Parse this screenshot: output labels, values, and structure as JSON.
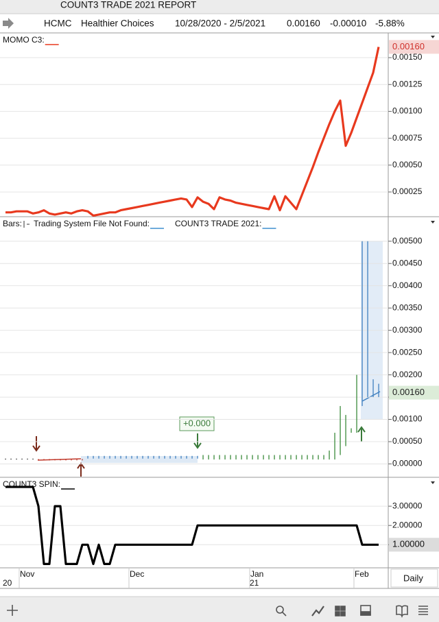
{
  "window_title": "COUNT3 TRADE 2021 REPORT",
  "header": {
    "symbol": "HCMC",
    "name": "Healthier Choices",
    "range": "10/28/2020 - 2/5/2021",
    "last": "0.00160",
    "change": "-0.00010",
    "change_pct": "-5.88%"
  },
  "period": "Daily",
  "chart_data": [
    {
      "type": "line",
      "series": [
        {
          "name": "MOMO C3:",
          "color": "#e8391e",
          "values": [
            6e-05,
            6e-05,
            7e-05,
            7e-05,
            7e-05,
            5e-05,
            6e-05,
            8e-05,
            5e-05,
            4e-05,
            5e-05,
            6e-05,
            5e-05,
            7e-05,
            8e-05,
            7e-05,
            3e-05,
            4e-05,
            5e-05,
            6e-05,
            6e-05,
            8e-05,
            9e-05,
            0.0001,
            0.00011,
            0.00012,
            0.00013,
            0.00014,
            0.00015,
            0.00016,
            0.00017,
            0.00018,
            0.00019,
            0.00018,
            0.00011,
            0.0002,
            0.00016,
            0.00014,
            9e-05,
            0.0002,
            0.00018,
            0.00017,
            0.00015,
            0.00014,
            0.00013,
            0.00012,
            0.00011,
            0.0001,
            9e-05,
            0.00021,
            8e-05,
            0.00021,
            0.00015,
            9e-05,
            0.00022,
            0.00035,
            0.00048,
            0.00062,
            0.00075,
            0.00088,
            0.001,
            0.0011,
            0.00068,
            0.0008,
            0.00094,
            0.00108,
            0.00122,
            0.00136,
            0.0016
          ]
        }
      ],
      "ylim": [
        2e-05,
        0.00173
      ],
      "yticks": [
        0.00025,
        {
          "value": 0.0005,
          "label": "0.00050"
        },
        0.00075,
        {
          "value": 0.001,
          "label": "0.00100"
        },
        0.00125,
        {
          "value": 0.0015,
          "label": "0.00150"
        }
      ],
      "last_value": {
        "value": 0.0016,
        "label": "0.00160"
      },
      "last_value_color": "#d0302a",
      "last_value_bg": "#f6d6d4"
    },
    {
      "type": "hilo",
      "series": [
        {
          "name": "Bars:",
          "high": [
            0.00012,
            0.00012,
            0.00012,
            0.00012,
            0.00012,
            0.00012,
            0.00011,
            0.00011,
            0.00011,
            0.00011,
            0.00011,
            0.00011,
            0.00011,
            0.00011,
            0.00011,
            0.00018,
            0.00018,
            0.00018,
            0.00018,
            0.00018,
            0.00018,
            0.00018,
            0.00018,
            0.00018,
            0.00018,
            0.00018,
            0.00018,
            0.00018,
            0.00018,
            0.00018,
            0.00018,
            0.00018,
            0.00018,
            0.00018,
            0.00018,
            0.00018,
            0.0002,
            0.0002,
            0.0002,
            0.0002,
            0.0002,
            0.0002,
            0.0002,
            0.0002,
            0.0002,
            0.0002,
            0.0002,
            0.0002,
            0.0002,
            0.0002,
            0.0002,
            0.0002,
            0.0002,
            0.0002,
            0.0002,
            0.0002,
            0.0002,
            0.0002,
            0.0002,
            0.0003,
            0.0007,
            0.0013,
            0.0011,
            0.0008,
            0.002,
            0.005,
            0.005,
            0.0019,
            0.0018
          ],
          "low": [
            0.00012,
            0.00012,
            0.00012,
            0.00012,
            0.00012,
            0.00012,
            8e-05,
            8e-05,
            8e-05,
            8e-05,
            8e-05,
            8e-05,
            8e-05,
            8e-05,
            8e-05,
            0.00012,
            0.00012,
            0.00012,
            0.00012,
            0.00012,
            0.00012,
            0.00012,
            0.00012,
            0.00012,
            0.00012,
            0.00012,
            0.00012,
            0.00012,
            0.00012,
            0.00012,
            0.00012,
            0.00012,
            0.00012,
            0.00012,
            0.00012,
            0.00012,
            0.0001,
            0.0001,
            0.0001,
            0.0001,
            0.0001,
            0.0001,
            0.0001,
            0.0001,
            0.0001,
            0.0001,
            0.0001,
            0.0001,
            0.0001,
            0.0001,
            0.0001,
            0.0001,
            0.0001,
            0.0001,
            0.0001,
            0.0001,
            0.0001,
            0.0001,
            0.0001,
            0.0001,
            0.0001,
            0.0002,
            0.0004,
            0.0007,
            0.0007,
            0.0013,
            0.0015,
            0.0015,
            0.0015
          ],
          "colors": [
            "#333",
            "#333",
            "#333",
            "#333",
            "#333",
            "#333",
            "#c0392b",
            "#c0392b",
            "#c0392b",
            "#c0392b",
            "#c0392b",
            "#c0392b",
            "#c0392b",
            "#c0392b",
            "#c0392b",
            "#3f7fbf",
            "#3f7fbf",
            "#3f7fbf",
            "#3f7fbf",
            "#3f7fbf",
            "#3f7fbf",
            "#3f7fbf",
            "#3f7fbf",
            "#3f7fbf",
            "#3f7fbf",
            "#3f7fbf",
            "#3f7fbf",
            "#3f7fbf",
            "#3f7fbf",
            "#3f7fbf",
            "#3f7fbf",
            "#3f7fbf",
            "#3f7fbf",
            "#3f7fbf",
            "#3f7fbf",
            "#3f7fbf",
            "#3a8a3a",
            "#3a8a3a",
            "#3a8a3a",
            "#3a8a3a",
            "#3a8a3a",
            "#3a8a3a",
            "#3a8a3a",
            "#3a8a3a",
            "#3a8a3a",
            "#3a8a3a",
            "#3a8a3a",
            "#3a8a3a",
            "#3a8a3a",
            "#3a8a3a",
            "#3a8a3a",
            "#3a8a3a",
            "#3a8a3a",
            "#3a8a3a",
            "#3a8a3a",
            "#3a8a3a",
            "#3a8a3a",
            "#3a8a3a",
            "#3a8a3a",
            "#3a8a3a",
            "#3a8a3a",
            "#3a8a3a",
            "#3a8a3a",
            "#3a8a3a",
            "#3a8a3a",
            "#3f7fbf",
            "#3f7fbf",
            "#3f7fbf",
            "#3f7fbf"
          ]
        }
      ],
      "legend": [
        {
          "name": "Trading System File Not Found:",
          "color": "#3f8fcf"
        },
        {
          "name": "COUNT3 TRADE 2021:",
          "color": "#3f8fcf"
        }
      ],
      "annotation": "+0.000",
      "ylim": [
        -0.0003,
        0.00555
      ],
      "yticks": [
        {
          "value": 0,
          "label": "0.00000"
        },
        {
          "value": 0.0005,
          "label": "0.00050"
        },
        {
          "value": 0.001,
          "label": "0.00100"
        },
        {
          "value": 0.0015,
          "label": "0.00150"
        },
        {
          "value": 0.002,
          "label": "0.00200"
        },
        {
          "value": 0.0025,
          "label": "0.00250"
        },
        {
          "value": 0.003,
          "label": "0.00300"
        },
        {
          "value": 0.0035,
          "label": "0.00350"
        },
        {
          "value": 0.004,
          "label": "0.00400"
        },
        {
          "value": 0.0045,
          "label": "0.00450"
        },
        {
          "value": 0.005,
          "label": "0.00500"
        }
      ],
      "last_value": {
        "value": 0.0016,
        "label": "0.00160"
      },
      "last_value_color": "#222",
      "last_value_bg": "#dcecd8"
    },
    {
      "type": "line",
      "series": [
        {
          "name": "COUNT3 SPIN:",
          "color": "#000",
          "values": [
            4,
            4,
            4,
            4,
            4,
            4,
            3,
            0,
            0,
            3,
            3,
            0,
            0,
            0,
            1,
            1,
            0,
            1,
            0,
            0,
            1,
            1,
            1,
            1,
            1,
            1,
            1,
            1,
            1,
            1,
            1,
            1,
            1,
            1,
            1,
            2,
            2,
            2,
            2,
            2,
            2,
            2,
            2,
            2,
            2,
            2,
            2,
            2,
            2,
            2,
            2,
            2,
            2,
            2,
            2,
            2,
            2,
            2,
            2,
            2,
            2,
            2,
            2,
            2,
            2,
            1,
            1,
            1,
            1
          ]
        }
      ],
      "ylim": [
        -0.2,
        4.5
      ],
      "yticks": [
        {
          "value": 1,
          "label": "1.00000"
        },
        {
          "value": 2,
          "label": "2.00000"
        },
        {
          "value": 3,
          "label": "3.00000"
        }
      ],
      "last_value": {
        "value": 1,
        "label": "1.00000"
      },
      "last_value_color": "#111",
      "last_value_bg": "#dcdcdc",
      "categories": [
        null,
        null,
        null,
        "Nov",
        null,
        null,
        null,
        null,
        null,
        null,
        null,
        null,
        null,
        null,
        null,
        null,
        null,
        null,
        null,
        null,
        null,
        null,
        null,
        "Dec",
        null,
        null,
        null,
        null,
        null,
        null,
        null,
        null,
        null,
        null,
        null,
        null,
        null,
        null,
        null,
        null,
        null,
        null,
        null,
        null,
        null,
        "Jan",
        null,
        null,
        null,
        null,
        null,
        null,
        null,
        null,
        null,
        null,
        null,
        null,
        null,
        null,
        null,
        null,
        null,
        null,
        "Feb",
        null,
        null,
        null,
        null
      ],
      "year_labels": [
        "20",
        null,
        null,
        null,
        null,
        null,
        null,
        null,
        null,
        null,
        null,
        null,
        null,
        null,
        null,
        null,
        null,
        null,
        null,
        null,
        null,
        null,
        null,
        null,
        null,
        null,
        null,
        null,
        null,
        null,
        null,
        null,
        null,
        null,
        null,
        null,
        null,
        null,
        null,
        null,
        null,
        null,
        null,
        null,
        null,
        "21",
        null,
        null,
        null,
        null,
        null,
        null,
        null,
        null,
        null,
        null,
        null,
        null,
        null,
        null,
        null,
        null,
        null,
        null,
        null,
        null,
        null,
        null,
        null
      ]
    }
  ]
}
